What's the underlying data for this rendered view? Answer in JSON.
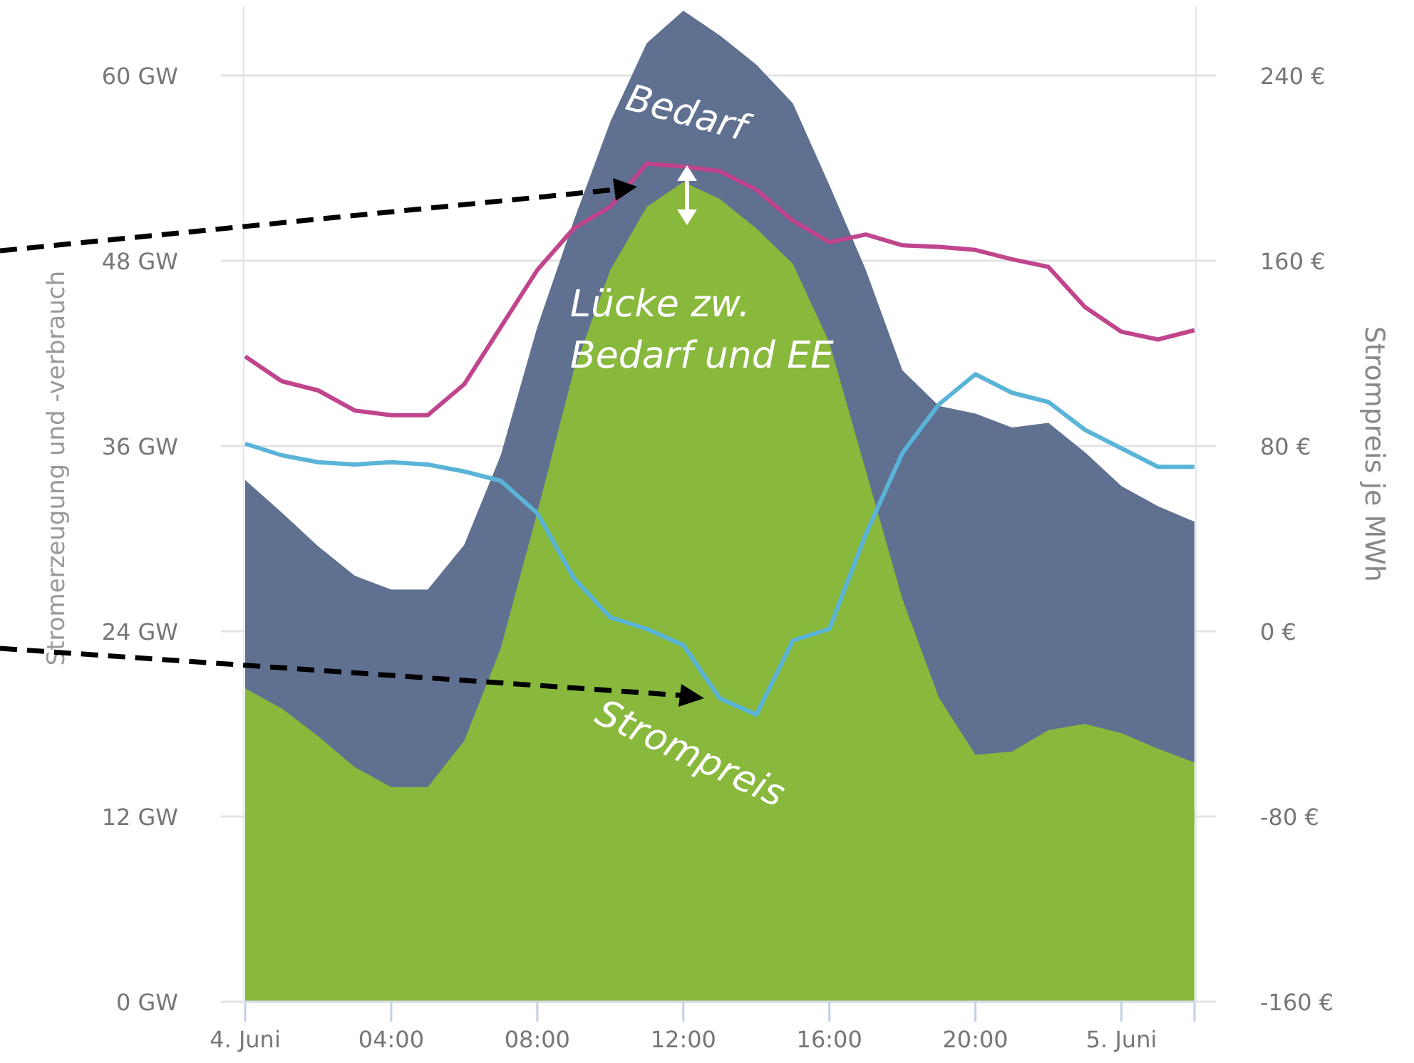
{
  "chart_data": {
    "type": "area",
    "ylabel": "Stromerzeugung und -verbrauch",
    "y2label": "Strompreis je MWh",
    "x": [
      0,
      1,
      2,
      3,
      4,
      5,
      6,
      7,
      8,
      9,
      10,
      11,
      12,
      13,
      14,
      15,
      16,
      17,
      18,
      19,
      20,
      21,
      22,
      23,
      24,
      25,
      26
    ],
    "xlim": [
      0,
      26
    ],
    "xticks": [
      {
        "value": 0,
        "label": "4. Juni"
      },
      {
        "value": 4,
        "label": "04:00"
      },
      {
        "value": 8,
        "label": "08:00"
      },
      {
        "value": 12,
        "label": "12:00"
      },
      {
        "value": 16,
        "label": "16:00"
      },
      {
        "value": 20,
        "label": "20:00"
      },
      {
        "value": 24,
        "label": "5. Juni"
      },
      {
        "value": 26,
        "label": null
      }
    ],
    "ylim": [
      0,
      64.5
    ],
    "yticks": [
      {
        "value": 0,
        "label": "0 GW"
      },
      {
        "value": 12,
        "label": "12 GW"
      },
      {
        "value": 24,
        "label": "24 GW"
      },
      {
        "value": 36,
        "label": "36 GW"
      },
      {
        "value": 48,
        "label": "48 GW"
      },
      {
        "value": 60,
        "label": "60 GW"
      }
    ],
    "y2lim": [
      -160,
      270
    ],
    "y2ticks": [
      {
        "value": -160,
        "label": "-160 €"
      },
      {
        "value": -80,
        "label": "-80 €"
      },
      {
        "value": 0,
        "label": "0 €"
      },
      {
        "value": 80,
        "label": "80 €"
      },
      {
        "value": 160,
        "label": "160 €"
      },
      {
        "value": 240,
        "label": "240 €"
      }
    ],
    "grid": "y",
    "series": [
      {
        "name": "Bedarf",
        "color": "#5f7090",
        "values": [
          33.8,
          31.7,
          29.5,
          27.6,
          26.7,
          26.7,
          29.6,
          35.4,
          43.7,
          50.6,
          57.0,
          62.1,
          64.2,
          62.6,
          60.7,
          58.2,
          52.9,
          47.4,
          40.9,
          38.6,
          38.1,
          37.2,
          37.5,
          35.6,
          33.4,
          32.1,
          31.1
        ]
      },
      {
        "color": "#88b83c",
        "values": [
          20.3,
          19.0,
          17.2,
          15.2,
          13.9,
          13.9,
          16.9,
          22.9,
          31.7,
          40.9,
          47.4,
          51.5,
          53.1,
          52.0,
          50.1,
          47.8,
          42.7,
          34.4,
          26.1,
          19.7,
          16.0,
          16.2,
          17.6,
          18.0,
          17.4,
          16.4,
          15.5
        ]
      },
      {
        "type": "line",
        "color": "#c0458c",
        "values": [
          41.8,
          40.2,
          39.6,
          38.3,
          38.0,
          38.0,
          40.0,
          43.7,
          47.4,
          50.1,
          51.5,
          54.3,
          54.1,
          53.8,
          52.6,
          50.6,
          49.2,
          49.7,
          49.0,
          48.9,
          48.7,
          48.1,
          47.6,
          45.0,
          43.4,
          42.9,
          43.5
        ]
      },
      {
        "name": "Strompreis",
        "type": "line",
        "axis": "y2",
        "color": "#5ab4d8",
        "values": [
          81,
          76,
          73,
          72,
          73,
          72,
          69,
          65,
          51,
          23,
          6,
          1,
          -6,
          -29,
          -36,
          -4,
          1,
          42,
          77,
          98,
          111,
          103,
          99,
          87,
          79,
          71,
          71
        ]
      }
    ],
    "annotations": [
      "Lücke zw. Bedarf und EE"
    ]
  }
}
